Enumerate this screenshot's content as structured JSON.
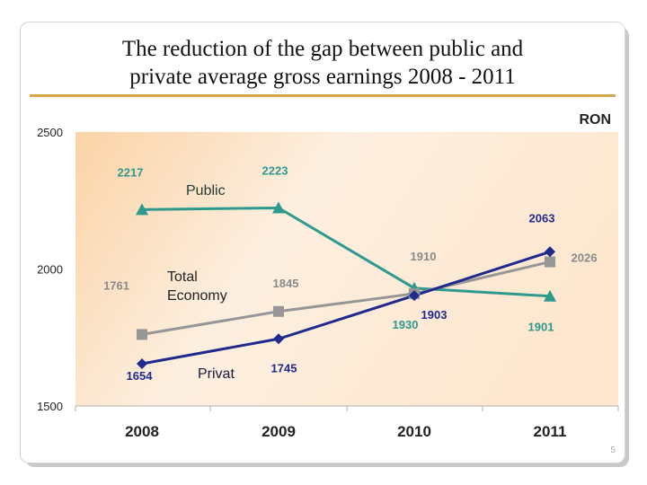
{
  "slide": {
    "title_line1": "The reduction of the gap between public and",
    "title_line2": "private average gross earnings 2008 - 2011",
    "page_number": "5"
  },
  "colors": {
    "public": "#2e9a8e",
    "total_economy": "#969696",
    "private": "#1f2a8c",
    "label_public": "#2e9a8e",
    "label_total": "#8a8a8a",
    "label_private": "#1f2a8c",
    "accent_rule": "#d7a54a"
  },
  "chart_data": {
    "type": "line",
    "unit_label": "RON",
    "categories": [
      "2008",
      "2009",
      "2010",
      "2011"
    ],
    "ylim": [
      1500,
      2500
    ],
    "yticks": [
      1500,
      2000,
      2500
    ],
    "grid": false,
    "series": [
      {
        "name": "Public",
        "marker": "triangle",
        "values": [
          2217,
          2223,
          1930,
          1901
        ]
      },
      {
        "name": "Total Economy",
        "marker": "square",
        "values": [
          1761,
          1845,
          1910,
          2026
        ]
      },
      {
        "name": "Privat",
        "marker": "diamond",
        "values": [
          1654,
          1745,
          1903,
          2063
        ]
      }
    ]
  }
}
